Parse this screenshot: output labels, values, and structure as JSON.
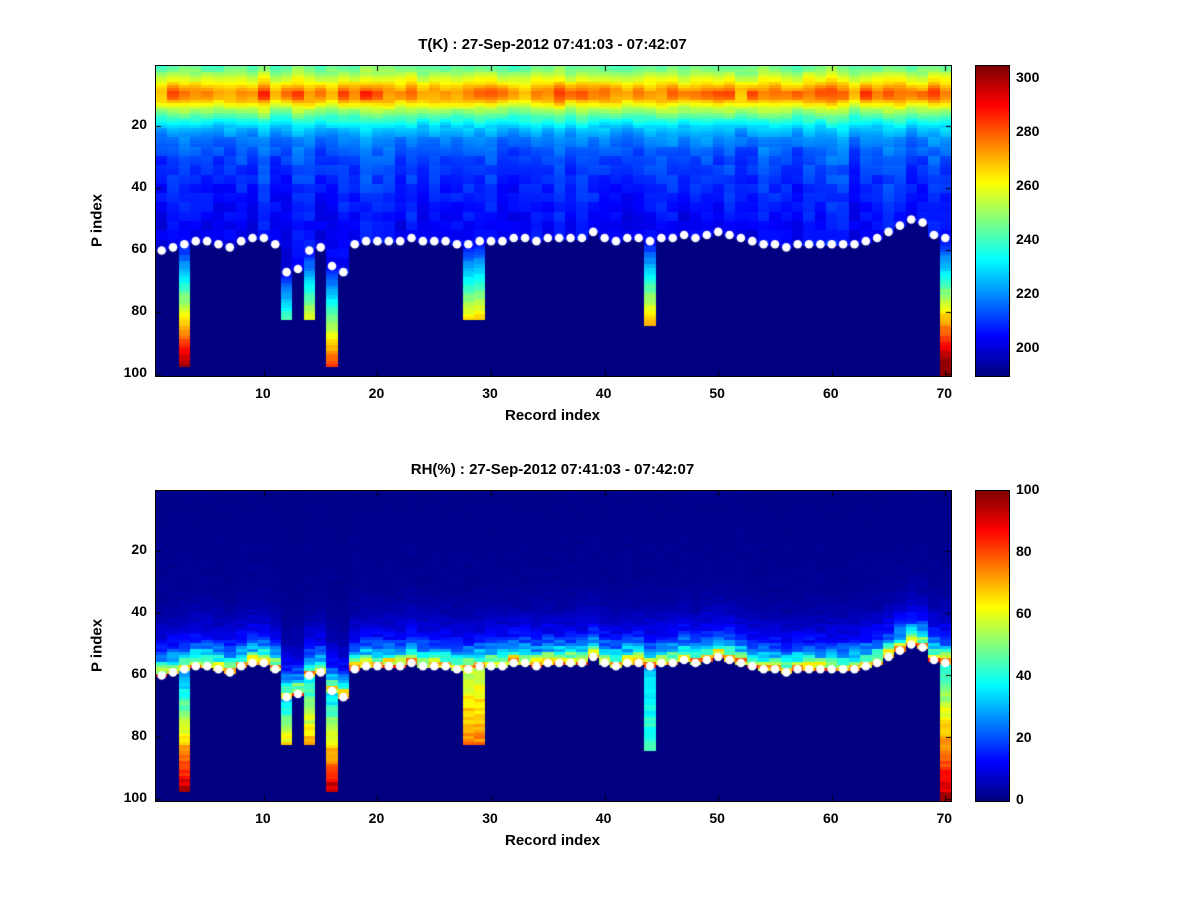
{
  "figure": {
    "background": "#ffffff"
  },
  "chart_data": {
    "shared": {
      "n_records": 70,
      "n_p_levels": 100,
      "surface_marker": {
        "shape": "circle",
        "color": "#ffffff"
      },
      "surface_p_index_by_record": [
        60,
        59,
        58,
        57,
        57,
        58,
        59,
        57,
        56,
        56,
        58,
        67,
        66,
        60,
        59,
        65,
        67,
        58,
        57,
        57,
        57,
        57,
        56,
        57,
        57,
        57,
        58,
        58,
        57,
        57,
        57,
        56,
        56,
        57,
        56,
        56,
        56,
        56,
        54,
        56,
        57,
        56,
        56,
        57,
        56,
        56,
        55,
        56,
        55,
        54,
        55,
        56,
        57,
        58,
        58,
        59,
        58,
        58,
        58,
        58,
        58,
        58,
        57,
        56,
        54,
        52,
        50,
        51,
        55,
        56
      ],
      "deep_records": [
        {
          "record": 3,
          "depth": 97,
          "rh_top": 25,
          "rh_bottom": 95
        },
        {
          "record": 12,
          "depth": 82,
          "rh_top": 30,
          "rh_bottom": 65
        },
        {
          "record": 14,
          "depth": 82,
          "rh_top": 35,
          "rh_bottom": 70
        },
        {
          "record": 16,
          "depth": 97,
          "rh_top": 30,
          "rh_bottom": 95
        },
        {
          "record": 28,
          "depth": 82,
          "rh_top": 55,
          "rh_bottom": 75
        },
        {
          "record": 29,
          "depth": 82,
          "rh_top": 55,
          "rh_bottom": 75
        },
        {
          "record": 44,
          "depth": 84,
          "rh_top": 30,
          "rh_bottom": 45
        },
        {
          "record": 70,
          "depth": 100,
          "rh_top": 40,
          "rh_bottom": 95
        }
      ]
    },
    "charts": [
      {
        "type": "heatmap",
        "variable": "temperature",
        "units": "K",
        "title": "T(K) : 27-Sep-2012 07:41:03 - 07:42:07",
        "xlabel": "Record index",
        "ylabel": "P index",
        "x_range": [
          1,
          70
        ],
        "y_range": [
          1,
          100
        ],
        "y_axis_reversed": true,
        "x_ticks": [
          10,
          20,
          30,
          40,
          50,
          60,
          70
        ],
        "y_ticks": [
          20,
          40,
          60,
          80,
          100
        ],
        "colormap": "jet",
        "colorbar": {
          "min": 190,
          "max": 305,
          "ticks": [
            200,
            220,
            240,
            260,
            280,
            300
          ]
        },
        "profile_by_p_index": [
          [
            1,
            245
          ],
          [
            3,
            252
          ],
          [
            5,
            260
          ],
          [
            7,
            268
          ],
          [
            9,
            274
          ],
          [
            11,
            272
          ],
          [
            13,
            262
          ],
          [
            16,
            246
          ],
          [
            20,
            229
          ],
          [
            24,
            220
          ],
          [
            28,
            215
          ],
          [
            34,
            211
          ],
          [
            42,
            208
          ],
          [
            52,
            205
          ],
          [
            70,
            204
          ],
          [
            100,
            204
          ]
        ],
        "warm_band_p_range": [
          6,
          13
        ],
        "below_surface_value": 190,
        "deep_value_rule": {
          "start": 204,
          "per_level": 2.5,
          "max": 303
        }
      },
      {
        "type": "heatmap",
        "variable": "relative_humidity",
        "units": "%",
        "title": "RH(%) : 27-Sep-2012 07:41:03 - 07:42:07",
        "xlabel": "Record index",
        "ylabel": "P index",
        "x_range": [
          1,
          70
        ],
        "y_range": [
          1,
          100
        ],
        "y_axis_reversed": true,
        "x_ticks": [
          10,
          20,
          30,
          40,
          50,
          60,
          70
        ],
        "y_ticks": [
          20,
          40,
          60,
          80,
          100
        ],
        "colormap": "jet",
        "colorbar": {
          "min": 0,
          "max": 100,
          "ticks": [
            0,
            20,
            40,
            60,
            80,
            100
          ]
        },
        "profile_by_height_above_surface": [
          [
            0,
            70
          ],
          [
            1,
            64
          ],
          [
            2,
            54
          ],
          [
            3,
            42
          ],
          [
            4,
            34
          ],
          [
            6,
            24
          ],
          [
            9,
            14
          ],
          [
            13,
            8
          ],
          [
            18,
            4
          ],
          [
            25,
            2
          ],
          [
            60,
            1
          ]
        ],
        "below_surface_value": 0
      }
    ]
  }
}
